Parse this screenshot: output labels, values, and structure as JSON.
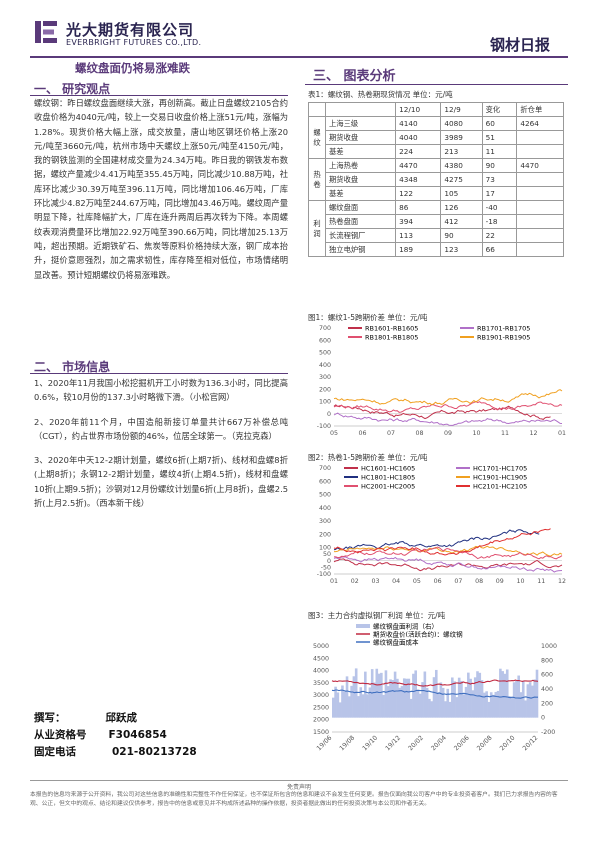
{
  "header": {
    "company_cn": "光大期货有限公司",
    "company_en": "EVERBRIGHT FUTURES CO.,LTD.",
    "report": "钢材日报"
  },
  "headline": "螺纹盘面仍将易涨难跌",
  "sections": {
    "research": "一、  研究观点",
    "market": "二、  市场信息",
    "charts": "三、  图表分析"
  },
  "research_text": "螺纹钢：昨日螺纹盘面继续大涨，再创新高。截止日盘螺纹2105合约收盘价格为4040元/吨，较上一交易日收盘价格上涨51元/吨，涨幅为1.28%。现货价格大幅上涨，成交放量，唐山地区钢坯价格上涨20元/吨至3660元/吨，杭州市场中天螺纹上涨50元/吨至4150元/吨，我的钢铁监测的全国建材成交量为24.34万吨。昨日我的钢铁发布数据，螺纹产量减少4.41万吨至355.45万吨，同比减少10.88万吨，社库环比减少30.39万吨至396.11万吨，同比增加106.46万吨，厂库环比减少4.82万吨至244.67万吨，同比增加43.46万吨。螺纹周产量明显下降，社库降幅扩大，厂库在连升两周后再次转为下降。本周螺纹表观消费量环比增加22.92万吨至390.66万吨，同比增加25.13万吨，超出预期。近期铁矿石、焦炭等原料价格持续大涨，钢厂成本抬升，挺价意愿强烈，加之需求韧性，库存降至相对低位，市场情绪明显改善。预计短期螺纹仍将易涨难跌。",
  "market_items": [
    "1、2020年11月我国小松挖掘机开工小时数为136.3小时，同比提高0.6%，较10月份的137.3小时略微下滑。（小松官网）",
    "2、2020年前11个月，中国造船新接订单量共计667万补偿总吨（CGT），约占世界市场份额的46%，位居全球第一。（克拉克森）",
    "3、2020年中天12-2期计划量，螺纹6折(上期7折)、线材和盘螺8折(上期8折)；永钢12-2期计划量，螺纹4折(上期4.5折)，线材和盘螺10折(上期9.5折)；沙钢对12月份螺纹计划量6折(上月8折)，盘螺2.5折(上月2.5折)。（西本新干线）"
  ],
  "author": {
    "l1": "撰写：",
    "v1": "邱跃成",
    "l2": "从业资格号",
    "v2": "F3046854",
    "l3": "固定电话",
    "v3": "021-80213728"
  },
  "table": {
    "caption": "表1：螺纹钢、热卷期现货情况   单位：元/吨",
    "headers": [
      "",
      "",
      "12/10",
      "12/9",
      "变化",
      "折仓单"
    ],
    "groups": [
      {
        "name": "螺纹",
        "rows": [
          [
            "上海三级",
            "4140",
            "4080",
            "60",
            "4264"
          ],
          [
            "期货收盘",
            "4040",
            "3989",
            "51",
            ""
          ],
          [
            "基差",
            "224",
            "213",
            "11",
            ""
          ]
        ]
      },
      {
        "name": "热卷",
        "rows": [
          [
            "上海热卷",
            "4470",
            "4380",
            "90",
            "4470"
          ],
          [
            "期货收盘",
            "4348",
            "4275",
            "73",
            ""
          ],
          [
            "基差",
            "122",
            "105",
            "17",
            ""
          ]
        ]
      },
      {
        "name": "利润",
        "rows": [
          [
            "螺纹盘面",
            "86",
            "126",
            "-40",
            ""
          ],
          [
            "热卷盘面",
            "394",
            "412",
            "-18",
            ""
          ],
          [
            "长流程钢厂",
            "113",
            "90",
            "22",
            ""
          ],
          [
            "独立电炉钢",
            "189",
            "123",
            "66",
            ""
          ]
        ]
      }
    ]
  },
  "chart_data": [
    {
      "type": "line",
      "title": "图1：螺纹1-5跨期价差  单位：元/吨",
      "series": [
        {
          "name": "RB1601-RB1605",
          "color": "#c0304a"
        },
        {
          "name": "RB1701-RB1705",
          "color": "#b070c8"
        },
        {
          "name": "RB1801-RB1805",
          "color": "#e05070"
        },
        {
          "name": "RB1901-RB1905",
          "color": "#f0a020"
        }
      ],
      "yticks": [
        "700",
        "600",
        "500",
        "400",
        "300",
        "200",
        "100",
        "0",
        "-100"
      ],
      "ylim": [
        -100,
        700
      ],
      "xticks": [
        "05",
        "06",
        "07",
        "08",
        "09",
        "10",
        "11",
        "12",
        "01"
      ]
    },
    {
      "type": "line",
      "title": "图2：热卷1-5跨期价差  单位：元/吨",
      "series": [
        {
          "name": "HC1601-HC1605",
          "color": "#c0304a"
        },
        {
          "name": "HC1701-HC1705",
          "color": "#b070c8"
        },
        {
          "name": "HC1801-HC1805",
          "color": "#203080"
        },
        {
          "name": "HC1901-HC1905",
          "color": "#f0a020"
        },
        {
          "name": "HC2001-HC2005",
          "color": "#e05070"
        },
        {
          "name": "HC2101-HC2105",
          "color": "#e03030"
        }
      ],
      "yticks": [
        "700",
        "600",
        "500",
        "400",
        "300",
        "200",
        "100",
        "50",
        "0",
        "-50",
        "-100"
      ],
      "ylim": [
        -100,
        700
      ],
      "xticks": [
        "01",
        "02",
        "03",
        "04",
        "05",
        "06",
        "07",
        "08",
        "09",
        "10",
        "11",
        "12"
      ]
    },
    {
      "type": "line",
      "title": "图3：主力合约虚拟钢厂利润  单位：元/吨",
      "series": [
        {
          "name": "螺纹钢盘面利润（右）",
          "color": "#b8c4e8"
        },
        {
          "name": "期货收盘价(活跃合约)：螺纹钢",
          "color": "#c02840"
        },
        {
          "name": "螺纹钢盘面成本",
          "color": "#4070c0"
        }
      ],
      "yticks_left": [
        "5000",
        "4500",
        "4000",
        "3500",
        "3000",
        "2500",
        "2000",
        "1500"
      ],
      "ylim_left": [
        1500,
        5000
      ],
      "yticks_right": [
        "1000",
        "800",
        "600",
        "400",
        "200",
        "0",
        "-200"
      ],
      "ylim_right": [
        -200,
        1000
      ],
      "xticks": [
        "19/06",
        "19/08",
        "19/10",
        "19/12",
        "20/02",
        "20/04",
        "20/06",
        "20/08",
        "20/10",
        "20/12"
      ]
    }
  ],
  "footer": {
    "title": "免责声明",
    "text": "本报告的信息均来源于公开资料，我公司对这些信息的准确性和完整性不作任何保证，也不保证所包含的信息和建议不会发生任何变更。报告仅面向我公司客户中的专业投资者客户。我们已力求报告内容的客观、公正，但文中的观点、结论和建议仅供参考，报告中的信息或意见并不构成所述品种的操作依据，投资者据此做出的任何投资决策与本公司和作者无关。"
  }
}
